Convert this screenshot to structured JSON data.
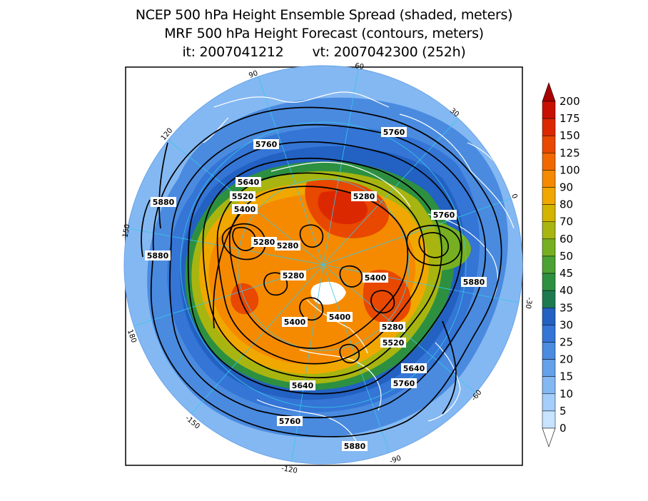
{
  "title": {
    "line1": "NCEP 500 hPa Height Ensemble Spread (shaded, meters)",
    "line2": "MRF 500 hPa Height Forecast (contours, meters)",
    "line3": "it: 2007041212       vt: 2007042300 (252h)"
  },
  "map": {
    "projection": "north-polar-stereographic",
    "shaded_field": "500 hPa height ensemble spread (m)",
    "contour_field": "500 hPa height forecast (m)",
    "colorbar": {
      "levels": [
        "0",
        "5",
        "10",
        "15",
        "20",
        "25",
        "30",
        "35",
        "40",
        "45",
        "50",
        "60",
        "70",
        "80",
        "90",
        "100",
        "125",
        "150",
        "175",
        "200"
      ],
      "colors": [
        "#c7e3ff",
        "#a5cdf9",
        "#84b8f2",
        "#64a1ea",
        "#4a8be0",
        "#3475d6",
        "#2361c2",
        "#1d7a50",
        "#2d9040",
        "#4aa232",
        "#76b022",
        "#a8b510",
        "#d2b300",
        "#f0a800",
        "#f58a00",
        "#f26800",
        "#e84800",
        "#dc2800",
        "#c81000",
        "#a80000"
      ]
    },
    "contour_labels": [
      {
        "text": "5760"
      },
      {
        "text": "5760"
      },
      {
        "text": "5760"
      },
      {
        "text": "5760"
      },
      {
        "text": "5760"
      },
      {
        "text": "5640"
      },
      {
        "text": "5520"
      },
      {
        "text": "5400"
      },
      {
        "text": "5280"
      },
      {
        "text": "5280"
      },
      {
        "text": "5280"
      },
      {
        "text": "5280"
      },
      {
        "text": "5400"
      },
      {
        "text": "5400"
      },
      {
        "text": "5400"
      },
      {
        "text": "5280"
      },
      {
        "text": "5520"
      },
      {
        "text": "5640"
      },
      {
        "text": "5640"
      },
      {
        "text": "5880"
      },
      {
        "text": "5880"
      },
      {
        "text": "5880"
      },
      {
        "text": "5880"
      }
    ],
    "longitude_labels": [
      {
        "text": "60"
      },
      {
        "text": "30"
      },
      {
        "text": "0"
      },
      {
        "text": "-30"
      },
      {
        "text": "-60"
      },
      {
        "text": "-90"
      },
      {
        "text": "-120"
      },
      {
        "text": "-150"
      },
      {
        "text": "180"
      },
      {
        "text": "150"
      },
      {
        "text": "120"
      },
      {
        "text": "90"
      }
    ]
  }
}
